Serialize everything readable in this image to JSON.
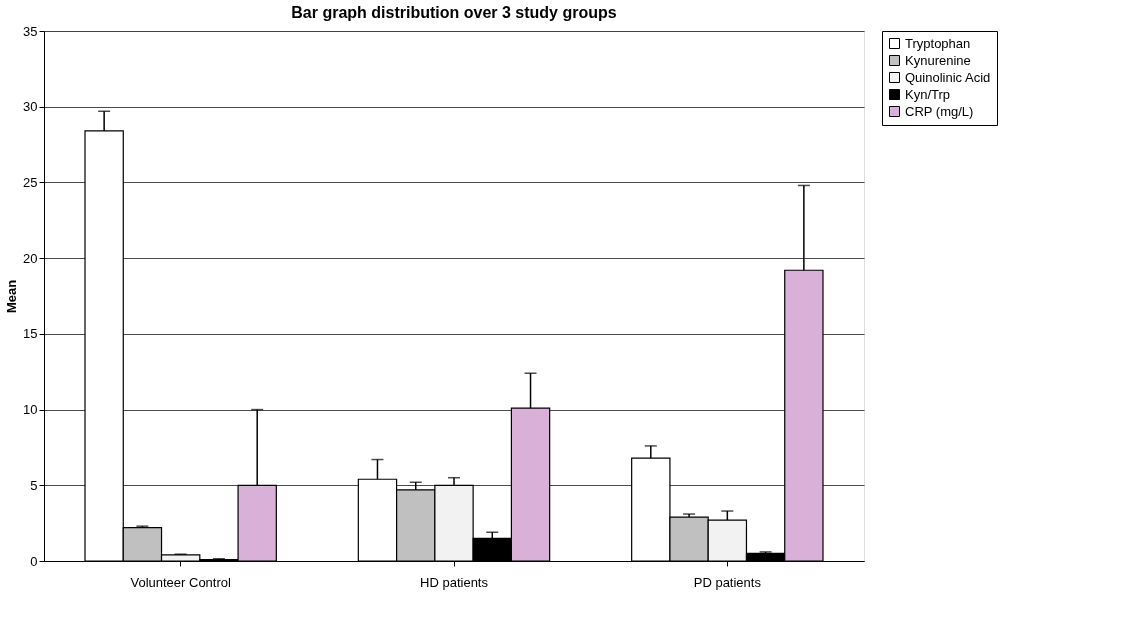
{
  "chart_data": {
    "type": "bar",
    "title": "Bar graph distribution over 3 study groups",
    "ylabel": "Mean",
    "categories": [
      "Volunteer Control",
      "HD patients",
      "PD patients"
    ],
    "series": [
      {
        "name": "Tryptophan",
        "color": "#ffffff",
        "values": [
          28.4,
          5.4,
          6.8
        ],
        "errors": [
          [
            28.4,
            29.7
          ],
          [
            5.4,
            6.7
          ],
          [
            6.8,
            7.6
          ]
        ]
      },
      {
        "name": "Kynurenine",
        "color": "#c0c0c0",
        "values": [
          2.2,
          4.7,
          2.9
        ],
        "errors": [
          [
            2.2,
            2.3
          ],
          [
            4.7,
            5.2
          ],
          [
            2.9,
            3.1
          ]
        ]
      },
      {
        "name": "Quinolinic Acid",
        "color": "#f2f2f2",
        "values": [
          0.4,
          5.0,
          2.7
        ],
        "errors": [
          [
            0.4,
            0.45
          ],
          [
            5.0,
            5.5
          ],
          [
            2.7,
            3.3
          ]
        ]
      },
      {
        "name": "Kyn/Trp",
        "color": "#000000",
        "values": [
          0.1,
          1.5,
          0.5
        ],
        "errors": [
          [
            0.1,
            0.15
          ],
          [
            1.5,
            1.9
          ],
          [
            0.5,
            0.6
          ]
        ]
      },
      {
        "name": "CRP (mg/L)",
        "color": "#d8b0d8",
        "values": [
          5.0,
          10.1,
          19.2
        ],
        "errors": [
          [
            5.0,
            10.0
          ],
          [
            10.1,
            12.4
          ],
          [
            19.2,
            24.8
          ]
        ]
      }
    ],
    "ylim": [
      0,
      35
    ],
    "yticks": [
      0,
      5,
      10,
      15,
      20,
      25,
      30,
      35
    ],
    "grid": "y",
    "legend": "right"
  }
}
